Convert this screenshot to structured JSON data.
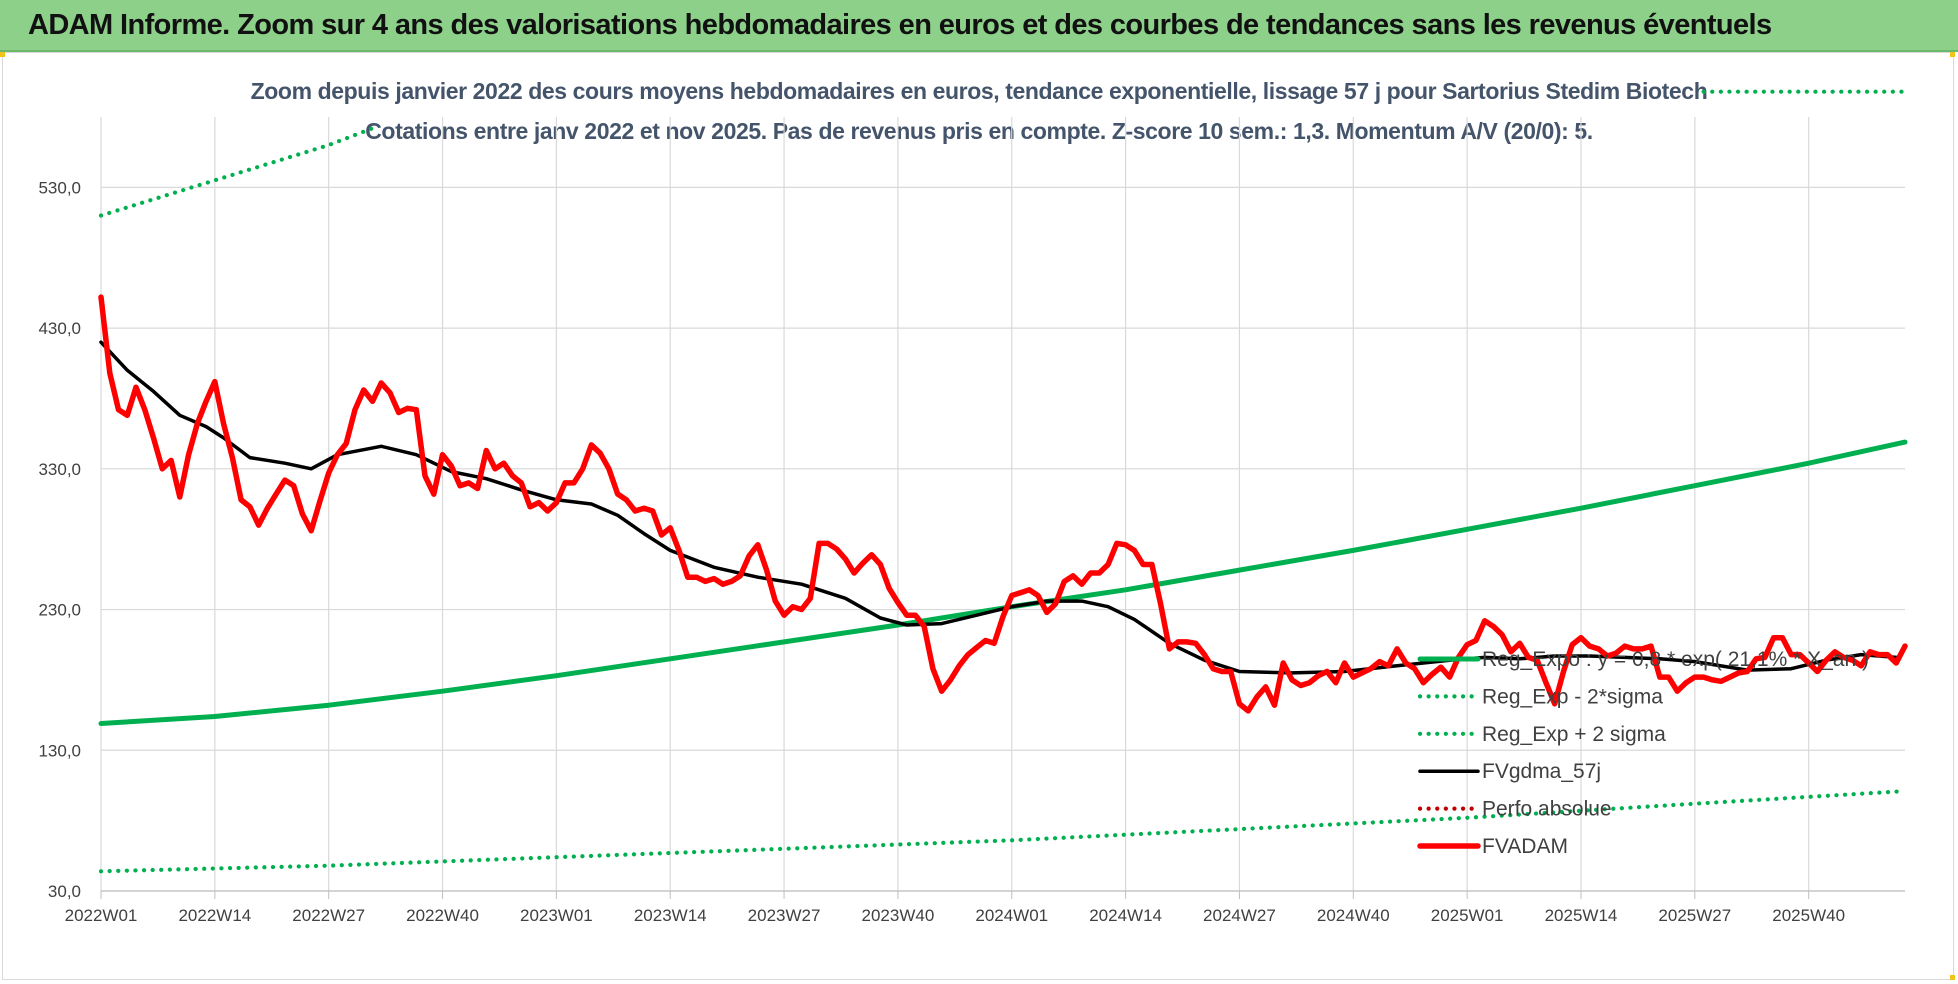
{
  "banner": {
    "title": "ADAM Informe. Zoom sur 4 ans des valorisations hebdomadaires en euros et des courbes de tendances sans les revenus éventuels"
  },
  "colors": {
    "banner_bg": "#8dd08a",
    "reg_exp": "#00b050",
    "fvgdma": "#000000",
    "fvadam": "#ff0000",
    "perfo": "#c00000",
    "grid": "#d9d9d9"
  },
  "chart_data": {
    "type": "line",
    "title": "Zoom depuis janvier 2022 des cours moyens hebdomadaires en euros, tendance exponentielle, lissage 57 j pour Sartorius Stedim Biotech",
    "subtitle": "Cotations entre janv 2022 et nov 2025. Pas de revenus pris en compte. Z-score 10 sem.: 1,3. Momentum A/V (20/0): 5.",
    "xlabel": "",
    "ylabel": "",
    "ylim": [
      30,
      580
    ],
    "yticks": [
      30,
      130,
      230,
      330,
      430,
      530
    ],
    "ytick_labels": [
      "30,0",
      "130,0",
      "230,0",
      "330,0",
      "430,0",
      "530,0"
    ],
    "x_range": [
      0,
      206
    ],
    "xtick_positions": [
      0,
      13,
      26,
      39,
      52,
      65,
      78,
      91,
      104,
      117,
      130,
      143,
      156,
      169,
      182,
      195
    ],
    "xtick_labels": [
      "2022W01",
      "2022W14",
      "2022W27",
      "2022W40",
      "2023W01",
      "2023W14",
      "2023W27",
      "2023W40",
      "2024W01",
      "2024W14",
      "2024W27",
      "2024W40",
      "2025W01",
      "2025W14",
      "2025W27",
      "2025W40"
    ],
    "legend_position": "right",
    "series": [
      {
        "name": "Reg_Expo : y = 0,8 * exp( 21,1% * X_an )",
        "style": "solid-thick",
        "color": "#00b050",
        "points": [
          [
            0,
            149
          ],
          [
            13,
            154
          ],
          [
            26,
            162
          ],
          [
            39,
            172
          ],
          [
            52,
            183
          ],
          [
            65,
            195
          ],
          [
            78,
            207
          ],
          [
            91,
            219
          ],
          [
            104,
            232
          ],
          [
            117,
            244
          ],
          [
            130,
            258
          ],
          [
            143,
            272
          ],
          [
            156,
            287
          ],
          [
            169,
            302
          ],
          [
            182,
            318
          ],
          [
            195,
            334
          ],
          [
            206,
            349
          ]
        ]
      },
      {
        "name": "Reg_Exp - 2*sigma",
        "style": "dotted",
        "color": "#00b050",
        "points": [
          [
            0,
            44
          ],
          [
            26,
            48
          ],
          [
            52,
            54
          ],
          [
            78,
            60
          ],
          [
            104,
            66
          ],
          [
            130,
            74
          ],
          [
            156,
            82
          ],
          [
            182,
            92
          ],
          [
            206,
            101
          ]
        ]
      },
      {
        "name": "Reg_Exp + 2 sigma",
        "style": "dotted",
        "color": "#00b050",
        "points": [
          [
            0,
            510
          ],
          [
            13,
            535
          ],
          [
            26,
            560
          ],
          [
            31,
            572
          ]
        ]
      },
      {
        "name": "Reg_Exp + 2 sigma (upper)",
        "style": "dotted",
        "color": "#00b050",
        "show_in_legend": false,
        "points": [
          [
            183,
            598
          ],
          [
            206,
            598
          ]
        ]
      },
      {
        "name": "FVgdma_57j",
        "style": "solid",
        "color": "#000000",
        "points": [
          [
            0,
            420
          ],
          [
            3,
            400
          ],
          [
            6,
            385
          ],
          [
            9,
            368
          ],
          [
            12,
            360
          ],
          [
            14,
            352
          ],
          [
            17,
            338
          ],
          [
            21,
            334
          ],
          [
            24,
            330
          ],
          [
            27,
            340
          ],
          [
            32,
            346
          ],
          [
            36,
            340
          ],
          [
            40,
            328
          ],
          [
            44,
            323
          ],
          [
            48,
            315
          ],
          [
            52,
            308
          ],
          [
            56,
            305
          ],
          [
            59,
            297
          ],
          [
            62,
            284
          ],
          [
            65,
            272
          ],
          [
            70,
            260
          ],
          [
            75,
            253
          ],
          [
            80,
            248
          ],
          [
            85,
            238
          ],
          [
            89,
            224
          ],
          [
            92,
            219
          ],
          [
            96,
            220
          ],
          [
            100,
            226
          ],
          [
            104,
            232
          ],
          [
            108,
            236
          ],
          [
            112,
            236
          ],
          [
            115,
            232
          ],
          [
            118,
            223
          ],
          [
            122,
            206
          ],
          [
            126,
            194
          ],
          [
            130,
            186
          ],
          [
            136,
            185
          ],
          [
            142,
            186
          ],
          [
            148,
            190
          ],
          [
            154,
            194
          ],
          [
            158,
            196
          ],
          [
            162,
            195
          ],
          [
            166,
            197
          ],
          [
            170,
            197
          ],
          [
            174,
            196
          ],
          [
            178,
            195
          ],
          [
            182,
            193
          ],
          [
            188,
            187
          ],
          [
            193,
            188
          ],
          [
            197,
            194
          ],
          [
            201,
            198
          ],
          [
            205,
            196
          ]
        ]
      },
      {
        "name": "Perfo absolue",
        "style": "dotted",
        "color": "#c00000",
        "points": []
      },
      {
        "name": "FVADAM",
        "style": "solid-thick",
        "color": "#ff0000",
        "points": [
          [
            0,
            452
          ],
          [
            1,
            398
          ],
          [
            2,
            372
          ],
          [
            3,
            368
          ],
          [
            4,
            388
          ],
          [
            5,
            372
          ],
          [
            6,
            352
          ],
          [
            7,
            330
          ],
          [
            8,
            336
          ],
          [
            9,
            310
          ],
          [
            10,
            340
          ],
          [
            11,
            362
          ],
          [
            12,
            378
          ],
          [
            13,
            392
          ],
          [
            14,
            362
          ],
          [
            15,
            338
          ],
          [
            16,
            308
          ],
          [
            17,
            303
          ],
          [
            18,
            290
          ],
          [
            19,
            302
          ],
          [
            20,
            312
          ],
          [
            21,
            322
          ],
          [
            22,
            318
          ],
          [
            23,
            298
          ],
          [
            24,
            286
          ],
          [
            25,
            307
          ],
          [
            26,
            327
          ],
          [
            27,
            340
          ],
          [
            28,
            348
          ],
          [
            29,
            372
          ],
          [
            30,
            386
          ],
          [
            31,
            378
          ],
          [
            32,
            391
          ],
          [
            33,
            384
          ],
          [
            34,
            370
          ],
          [
            35,
            373
          ],
          [
            36,
            372
          ],
          [
            37,
            325
          ],
          [
            38,
            312
          ],
          [
            39,
            340
          ],
          [
            40,
            332
          ],
          [
            41,
            318
          ],
          [
            42,
            320
          ],
          [
            43,
            316
          ],
          [
            44,
            343
          ],
          [
            45,
            330
          ],
          [
            46,
            334
          ],
          [
            47,
            325
          ],
          [
            48,
            320
          ],
          [
            49,
            303
          ],
          [
            50,
            306
          ],
          [
            51,
            300
          ],
          [
            52,
            306
          ],
          [
            53,
            320
          ],
          [
            54,
            320
          ],
          [
            55,
            330
          ],
          [
            56,
            347
          ],
          [
            57,
            341
          ],
          [
            58,
            330
          ],
          [
            59,
            312
          ],
          [
            60,
            308
          ],
          [
            61,
            300
          ],
          [
            62,
            302
          ],
          [
            63,
            300
          ],
          [
            64,
            283
          ],
          [
            65,
            288
          ],
          [
            66,
            272
          ],
          [
            67,
            253
          ],
          [
            68,
            253
          ],
          [
            69,
            250
          ],
          [
            70,
            252
          ],
          [
            71,
            248
          ],
          [
            72,
            250
          ],
          [
            73,
            254
          ],
          [
            74,
            268
          ],
          [
            75,
            276
          ],
          [
            76,
            258
          ],
          [
            77,
            236
          ],
          [
            78,
            226
          ],
          [
            79,
            232
          ],
          [
            80,
            230
          ],
          [
            81,
            238
          ],
          [
            82,
            277
          ],
          [
            83,
            277
          ],
          [
            84,
            273
          ],
          [
            85,
            266
          ],
          [
            86,
            256
          ],
          [
            87,
            263
          ],
          [
            88,
            269
          ],
          [
            89,
            262
          ],
          [
            90,
            245
          ],
          [
            91,
            235
          ],
          [
            92,
            226
          ],
          [
            93,
            226
          ],
          [
            94,
            218
          ],
          [
            95,
            188
          ],
          [
            96,
            172
          ],
          [
            97,
            180
          ],
          [
            98,
            190
          ],
          [
            99,
            198
          ],
          [
            100,
            203
          ],
          [
            101,
            208
          ],
          [
            102,
            206
          ],
          [
            103,
            225
          ],
          [
            104,
            240
          ],
          [
            105,
            242
          ],
          [
            106,
            244
          ],
          [
            107,
            240
          ],
          [
            108,
            228
          ],
          [
            109,
            234
          ],
          [
            110,
            250
          ],
          [
            111,
            254
          ],
          [
            112,
            248
          ],
          [
            113,
            256
          ],
          [
            114,
            256
          ],
          [
            115,
            262
          ],
          [
            116,
            277
          ],
          [
            117,
            276
          ],
          [
            118,
            272
          ],
          [
            119,
            262
          ],
          [
            120,
            262
          ],
          [
            121,
            234
          ],
          [
            122,
            202
          ],
          [
            123,
            207
          ],
          [
            124,
            207
          ],
          [
            125,
            206
          ],
          [
            126,
            198
          ],
          [
            127,
            188
          ],
          [
            128,
            186
          ],
          [
            129,
            186
          ],
          [
            130,
            163
          ],
          [
            131,
            158
          ],
          [
            132,
            168
          ],
          [
            133,
            175
          ],
          [
            134,
            162
          ],
          [
            135,
            192
          ],
          [
            136,
            180
          ],
          [
            137,
            176
          ],
          [
            138,
            178
          ],
          [
            139,
            183
          ],
          [
            140,
            186
          ],
          [
            141,
            178
          ],
          [
            142,
            192
          ],
          [
            143,
            182
          ],
          [
            144,
            185
          ],
          [
            145,
            188
          ],
          [
            146,
            193
          ],
          [
            147,
            190
          ],
          [
            148,
            202
          ],
          [
            149,
            192
          ],
          [
            150,
            188
          ],
          [
            151,
            178
          ],
          [
            152,
            184
          ],
          [
            153,
            189
          ],
          [
            154,
            182
          ],
          [
            155,
            196
          ],
          [
            156,
            205
          ],
          [
            157,
            208
          ],
          [
            158,
            222
          ],
          [
            159,
            218
          ],
          [
            160,
            212
          ],
          [
            161,
            200
          ],
          [
            162,
            206
          ],
          [
            163,
            196
          ],
          [
            164,
            194
          ],
          [
            165,
            178
          ],
          [
            166,
            163
          ],
          [
            167,
            186
          ],
          [
            168,
            205
          ],
          [
            169,
            210
          ],
          [
            170,
            204
          ],
          [
            171,
            202
          ],
          [
            172,
            197
          ],
          [
            173,
            199
          ],
          [
            174,
            204
          ],
          [
            175,
            202
          ],
          [
            176,
            202
          ],
          [
            177,
            204
          ],
          [
            178,
            182
          ],
          [
            179,
            182
          ],
          [
            180,
            172
          ],
          [
            181,
            178
          ],
          [
            182,
            182
          ],
          [
            183,
            182
          ],
          [
            184,
            180
          ],
          [
            185,
            179
          ],
          [
            186,
            182
          ],
          [
            187,
            185
          ],
          [
            188,
            186
          ],
          [
            189,
            195
          ],
          [
            190,
            196
          ],
          [
            191,
            210
          ],
          [
            192,
            210
          ],
          [
            193,
            198
          ],
          [
            194,
            198
          ],
          [
            195,
            192
          ],
          [
            196,
            186
          ],
          [
            197,
            194
          ],
          [
            198,
            200
          ],
          [
            199,
            196
          ],
          [
            200,
            194
          ],
          [
            201,
            190
          ],
          [
            202,
            200
          ],
          [
            203,
            198
          ],
          [
            204,
            198
          ],
          [
            205,
            192
          ],
          [
            206,
            204
          ]
        ]
      }
    ]
  }
}
